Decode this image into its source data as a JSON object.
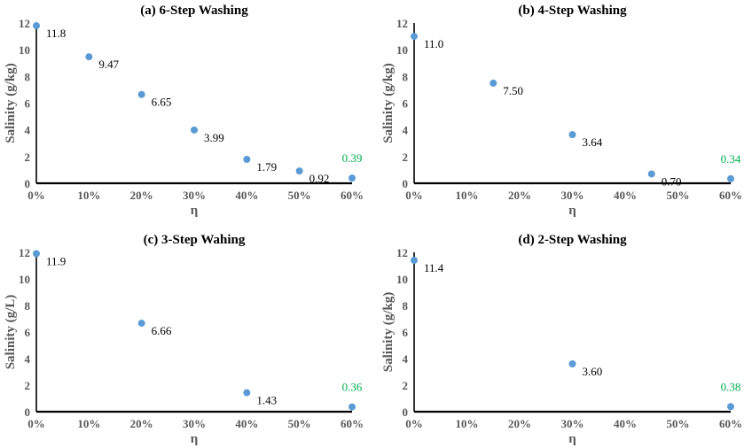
{
  "chart_data": [
    {
      "type": "scatter",
      "title": "(a) 6-Step Washing",
      "xlabel": "η",
      "ylabel": "Salinity (g/kg)",
      "xlim": [
        0,
        60
      ],
      "ylim": [
        0,
        12
      ],
      "x_ticks": [
        "0%",
        "10%",
        "20%",
        "30%",
        "40%",
        "50%",
        "60%"
      ],
      "y_ticks": [
        "0",
        "2",
        "4",
        "6",
        "8",
        "10",
        "12"
      ],
      "points": [
        {
          "x": 0,
          "y": 11.8,
          "label": "11.8"
        },
        {
          "x": 10,
          "y": 9.47,
          "label": "9.47"
        },
        {
          "x": 20,
          "y": 6.65,
          "label": "6.65"
        },
        {
          "x": 30,
          "y": 3.99,
          "label": "3.99"
        },
        {
          "x": 40,
          "y": 1.79,
          "label": "1.79"
        },
        {
          "x": 50,
          "y": 0.92,
          "label": "0.92"
        },
        {
          "x": 60,
          "y": 0.39,
          "label": "0.39",
          "highlight": true
        }
      ]
    },
    {
      "type": "scatter",
      "title": "(b) 4-Step Washing",
      "xlabel": "η",
      "ylabel": "Salinity (g/kg)",
      "xlim": [
        0,
        60
      ],
      "ylim": [
        0,
        12
      ],
      "x_ticks": [
        "0%",
        "10%",
        "20%",
        "30%",
        "40%",
        "50%",
        "60%"
      ],
      "y_ticks": [
        "0",
        "2",
        "4",
        "6",
        "8",
        "10",
        "12"
      ],
      "points": [
        {
          "x": 0,
          "y": 11.0,
          "label": "11.0"
        },
        {
          "x": 15,
          "y": 7.5,
          "label": "7.50"
        },
        {
          "x": 30,
          "y": 3.64,
          "label": "3.64"
        },
        {
          "x": 45,
          "y": 0.7,
          "label": "0.70"
        },
        {
          "x": 60,
          "y": 0.34,
          "label": "0.34",
          "highlight": true
        }
      ]
    },
    {
      "type": "scatter",
      "title": "(c) 3-Step Wahing",
      "xlabel": "η",
      "ylabel": "Salinity (g/L)",
      "xlim": [
        0,
        60
      ],
      "ylim": [
        0,
        12
      ],
      "x_ticks": [
        "0%",
        "10%",
        "20%",
        "30%",
        "40%",
        "50%",
        "60%"
      ],
      "y_ticks": [
        "0",
        "2",
        "4",
        "6",
        "8",
        "10",
        "12"
      ],
      "points": [
        {
          "x": 0,
          "y": 11.9,
          "label": "11.9"
        },
        {
          "x": 20,
          "y": 6.66,
          "label": "6.66"
        },
        {
          "x": 40,
          "y": 1.43,
          "label": "1.43"
        },
        {
          "x": 60,
          "y": 0.36,
          "label": "0.36",
          "highlight": true
        }
      ]
    },
    {
      "type": "scatter",
      "title": "(d) 2-Step Washing",
      "xlabel": "η",
      "ylabel": "Salinity (g/kg)",
      "xlim": [
        0,
        60
      ],
      "ylim": [
        0,
        12
      ],
      "x_ticks": [
        "0%",
        "10%",
        "20%",
        "30%",
        "40%",
        "50%",
        "60%"
      ],
      "y_ticks": [
        "0",
        "2",
        "4",
        "6",
        "8",
        "10",
        "12"
      ],
      "points": [
        {
          "x": 0,
          "y": 11.4,
          "label": "11.4"
        },
        {
          "x": 30,
          "y": 3.6,
          "label": "3.60"
        },
        {
          "x": 60,
          "y": 0.38,
          "label": "0.38",
          "highlight": true
        }
      ]
    }
  ],
  "colors": {
    "marker": "#5b9bd5",
    "highlight_label": "#00b050",
    "label": "#000000",
    "tick_label": "#595959",
    "axis_title": "#595959",
    "axis_line": "#000000"
  }
}
